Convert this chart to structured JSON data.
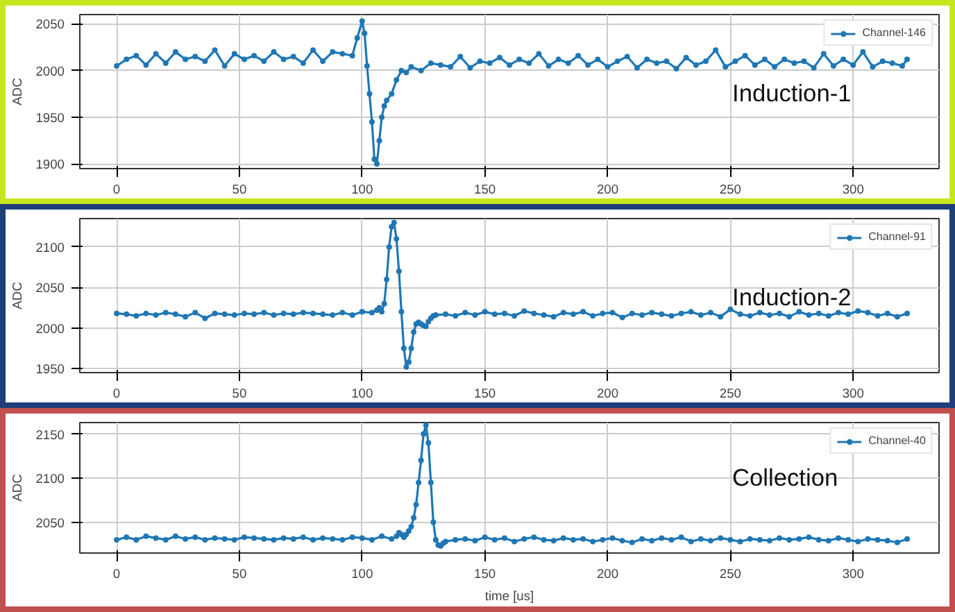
{
  "chart_data": [
    {
      "type": "line",
      "ylabel": "ADC",
      "annotations": [
        "Induction-1"
      ],
      "xlim": [
        -15,
        335
      ],
      "xticks": [
        0,
        50,
        100,
        150,
        200,
        250,
        300
      ],
      "ylim": [
        1895,
        2060
      ],
      "yticks": [
        1900,
        1950,
        2000,
        2050
      ],
      "grid": true,
      "legend": "top right",
      "marker": "circle",
      "line_style": "solid",
      "series": [
        {
          "name": "Channel-146",
          "color": "#1f77b4",
          "x": [
            0,
            4,
            8,
            12,
            16,
            20,
            24,
            28,
            32,
            36,
            40,
            44,
            48,
            52,
            56,
            60,
            64,
            68,
            72,
            76,
            80,
            84,
            88,
            92,
            96,
            98,
            100,
            101,
            102,
            103,
            104,
            105,
            106,
            107,
            108,
            109,
            110,
            112,
            114,
            116,
            118,
            120,
            124,
            128,
            132,
            136,
            140,
            144,
            148,
            152,
            156,
            160,
            164,
            168,
            172,
            176,
            180,
            184,
            188,
            192,
            196,
            200,
            204,
            208,
            212,
            216,
            220,
            224,
            228,
            232,
            236,
            240,
            244,
            248,
            252,
            256,
            260,
            264,
            268,
            272,
            276,
            280,
            284,
            288,
            292,
            296,
            300,
            304,
            308,
            312,
            316,
            320,
            322
          ],
          "values": [
            2005,
            2012,
            2016,
            2006,
            2018,
            2008,
            2020,
            2012,
            2015,
            2010,
            2022,
            2005,
            2018,
            2012,
            2016,
            2010,
            2020,
            2012,
            2015,
            2008,
            2022,
            2010,
            2020,
            2018,
            2016,
            2035,
            2053,
            2040,
            2005,
            1975,
            1945,
            1905,
            1900,
            1925,
            1950,
            1962,
            1968,
            1975,
            1990,
            2000,
            1998,
            2004,
            2000,
            2008,
            2006,
            2004,
            2015,
            2003,
            2010,
            2008,
            2014,
            2006,
            2012,
            2008,
            2018,
            2005,
            2012,
            2008,
            2016,
            2006,
            2012,
            2004,
            2010,
            2015,
            2003,
            2012,
            2008,
            2010,
            2002,
            2014,
            2006,
            2010,
            2022,
            2004,
            2010,
            2016,
            2006,
            2012,
            2004,
            2012,
            2008,
            2010,
            2003,
            2018,
            2005,
            2012,
            2006,
            2020,
            2004,
            2010,
            2008,
            2005,
            2012
          ]
        }
      ]
    },
    {
      "type": "line",
      "ylabel": "ADC",
      "annotations": [
        "Induction-2"
      ],
      "xlim": [
        -15,
        335
      ],
      "xticks": [
        0,
        50,
        100,
        150,
        200,
        250,
        300
      ],
      "ylim": [
        1945,
        2135
      ],
      "yticks": [
        1950,
        2000,
        2050,
        2100
      ],
      "grid": true,
      "legend": "top right",
      "marker": "circle",
      "line_style": "solid",
      "series": [
        {
          "name": "Channel-91",
          "color": "#1f77b4",
          "x": [
            0,
            4,
            8,
            12,
            16,
            20,
            24,
            28,
            32,
            36,
            40,
            44,
            48,
            52,
            56,
            60,
            64,
            68,
            72,
            76,
            80,
            84,
            88,
            92,
            96,
            100,
            104,
            106,
            107,
            108,
            109,
            110,
            111,
            112,
            113,
            114,
            115,
            116,
            117,
            118,
            119,
            120,
            121,
            122,
            123,
            124,
            125,
            126,
            127,
            128,
            129,
            130,
            134,
            138,
            142,
            146,
            150,
            154,
            158,
            162,
            166,
            170,
            174,
            178,
            182,
            186,
            190,
            194,
            198,
            202,
            206,
            210,
            214,
            218,
            222,
            226,
            230,
            234,
            238,
            242,
            246,
            250,
            254,
            258,
            262,
            266,
            270,
            274,
            278,
            282,
            286,
            290,
            294,
            298,
            302,
            306,
            310,
            314,
            318,
            322
          ],
          "values": [
            2018,
            2017,
            2015,
            2018,
            2016,
            2019,
            2017,
            2014,
            2019,
            2012,
            2018,
            2017,
            2016,
            2018,
            2017,
            2019,
            2016,
            2018,
            2017,
            2019,
            2018,
            2017,
            2016,
            2019,
            2016,
            2020,
            2019,
            2022,
            2025,
            2020,
            2030,
            2060,
            2100,
            2125,
            2130,
            2110,
            2070,
            2020,
            1975,
            1952,
            1958,
            1975,
            1995,
            2005,
            2007,
            2005,
            2003,
            2002,
            2008,
            2012,
            2015,
            2016,
            2017,
            2015,
            2019,
            2016,
            2020,
            2017,
            2018,
            2015,
            2021,
            2018,
            2016,
            2014,
            2019,
            2017,
            2020,
            2015,
            2018,
            2019,
            2013,
            2018,
            2016,
            2019,
            2017,
            2015,
            2018,
            2020,
            2016,
            2019,
            2014,
            2023,
            2017,
            2015,
            2019,
            2016,
            2018,
            2014,
            2020,
            2016,
            2018,
            2015,
            2019,
            2017,
            2021,
            2019,
            2015,
            2018,
            2014,
            2018
          ]
        }
      ]
    },
    {
      "type": "line",
      "xlabel": "time [us]",
      "ylabel": "ADC",
      "annotations": [
        "Collection"
      ],
      "xlim": [
        -15,
        335
      ],
      "xticks": [
        0,
        50,
        100,
        150,
        200,
        250,
        300
      ],
      "ylim": [
        2015,
        2163
      ],
      "yticks": [
        2050,
        2100,
        2150
      ],
      "grid": true,
      "legend": "top right",
      "marker": "circle",
      "line_style": "solid",
      "series": [
        {
          "name": "Channel-40",
          "color": "#1f77b4",
          "x": [
            0,
            4,
            8,
            12,
            16,
            20,
            24,
            28,
            32,
            36,
            40,
            44,
            48,
            52,
            56,
            60,
            64,
            68,
            72,
            76,
            80,
            84,
            88,
            92,
            96,
            100,
            104,
            108,
            112,
            114,
            115,
            116,
            117,
            118,
            119,
            120,
            121,
            122,
            123,
            124,
            125,
            126,
            127,
            128,
            129,
            130,
            131,
            132,
            133,
            134,
            138,
            142,
            146,
            150,
            154,
            158,
            162,
            166,
            170,
            174,
            178,
            182,
            186,
            190,
            194,
            198,
            202,
            206,
            210,
            214,
            218,
            222,
            226,
            230,
            234,
            238,
            242,
            246,
            250,
            254,
            258,
            262,
            266,
            270,
            274,
            278,
            282,
            286,
            290,
            294,
            298,
            302,
            306,
            310,
            314,
            318,
            322
          ],
          "values": [
            2030,
            2033,
            2030,
            2034,
            2032,
            2030,
            2034,
            2031,
            2033,
            2030,
            2032,
            2031,
            2030,
            2033,
            2032,
            2031,
            2030,
            2032,
            2031,
            2033,
            2030,
            2032,
            2031,
            2030,
            2033,
            2032,
            2030,
            2034,
            2031,
            2034,
            2038,
            2036,
            2033,
            2036,
            2040,
            2045,
            2055,
            2070,
            2095,
            2120,
            2150,
            2160,
            2140,
            2095,
            2050,
            2030,
            2024,
            2023,
            2026,
            2028,
            2030,
            2031,
            2029,
            2033,
            2030,
            2032,
            2028,
            2031,
            2033,
            2030,
            2029,
            2032,
            2030,
            2031,
            2028,
            2030,
            2032,
            2029,
            2027,
            2031,
            2029,
            2032,
            2030,
            2033,
            2028,
            2031,
            2029,
            2032,
            2030,
            2028,
            2031,
            2030,
            2029,
            2032,
            2030,
            2031,
            2033,
            2030,
            2029,
            2032,
            2030,
            2028,
            2031,
            2030,
            2029,
            2027,
            2031
          ]
        }
      ]
    }
  ]
}
